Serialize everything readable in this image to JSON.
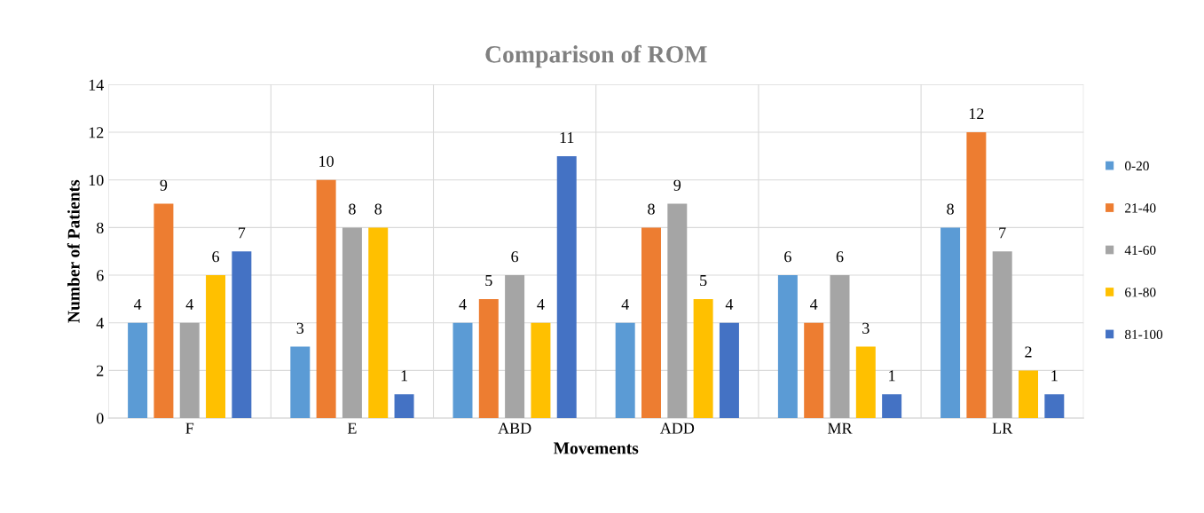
{
  "chart_data": {
    "type": "bar",
    "title": "Comparison of ROM",
    "xlabel": "Movements",
    "ylabel": "Number of Patients",
    "categories": [
      "F",
      "E",
      "ABD",
      "ADD",
      "MR",
      "LR"
    ],
    "series": [
      {
        "name": "0-20",
        "color": "#5b9bd5",
        "values": [
          4,
          3,
          4,
          4,
          6,
          8
        ]
      },
      {
        "name": "21-40",
        "color": "#ed7d31",
        "values": [
          9,
          10,
          5,
          8,
          4,
          12
        ]
      },
      {
        "name": "41-60",
        "color": "#a5a5a5",
        "values": [
          4,
          8,
          6,
          9,
          6,
          7
        ]
      },
      {
        "name": "61-80",
        "color": "#ffc000",
        "values": [
          6,
          8,
          4,
          5,
          3,
          2
        ]
      },
      {
        "name": "81-100",
        "color": "#4472c4",
        "values": [
          7,
          1,
          11,
          4,
          1,
          1
        ]
      }
    ],
    "ylim": [
      0,
      14
    ],
    "yticks": [
      0,
      2,
      4,
      6,
      8,
      10,
      12,
      14
    ],
    "grid": true,
    "legend": "right",
    "data_labels": true
  }
}
